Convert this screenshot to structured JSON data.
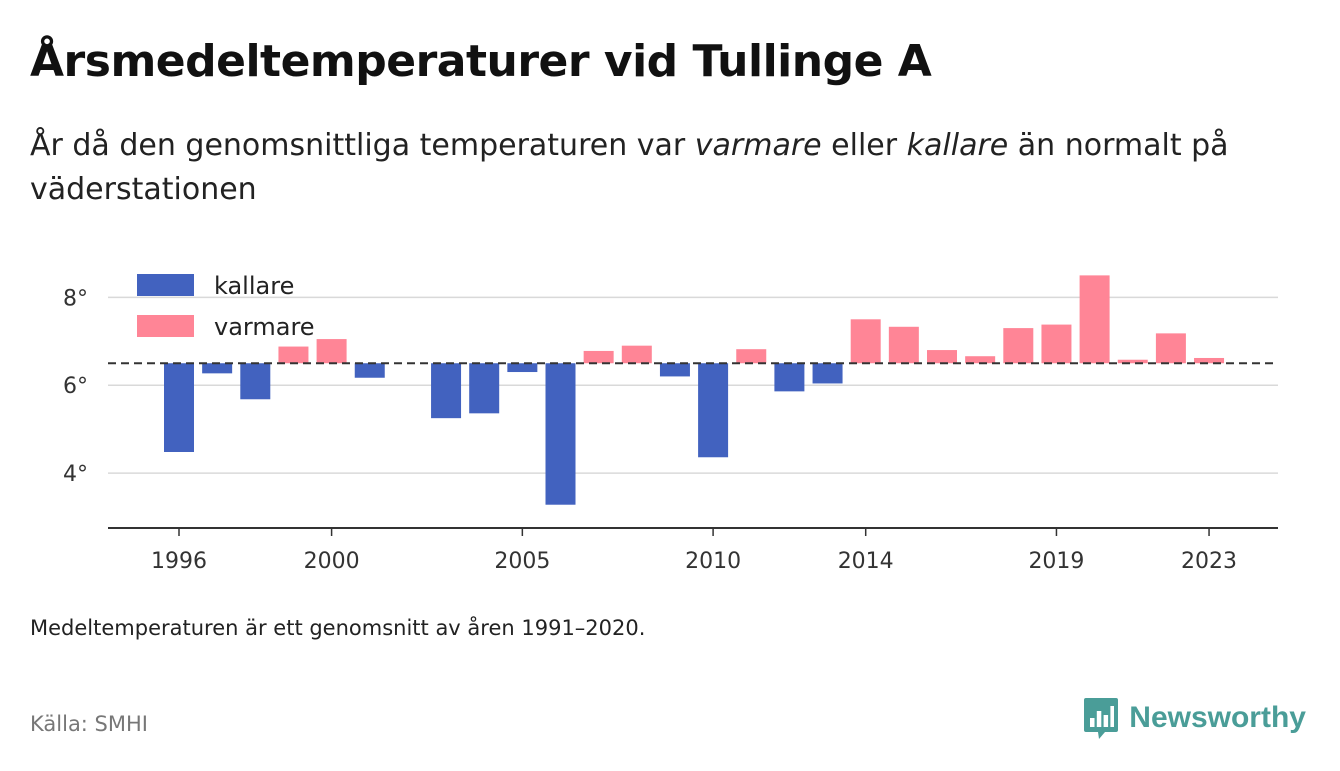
{
  "title": "Årsmedeltemperaturer vid Tullinge A",
  "subtitle": {
    "part1": "År då den genomsnittliga temperaturen var ",
    "warm_word": "varmare",
    "part2": " eller ",
    "cold_word": "kallare",
    "part3": " än normalt på väderstationen"
  },
  "note": "Medeltemperaturen är ett genomsnitt av åren 1991–2020.",
  "source": "Källa: SMHI",
  "brand": {
    "name": "Newsworthy",
    "icon": "bar-chart-speech-bubble-icon"
  },
  "colors": {
    "kallare": "#4262bf",
    "varmare": "#ff8596",
    "normal_line": "#333333",
    "brand": "#4a9d98"
  },
  "chart_data": {
    "type": "bar",
    "baseline": 6.5,
    "ylim": [
      2.75,
      8.85
    ],
    "yticks": [
      4,
      6,
      8
    ],
    "ytick_labels": [
      "4°",
      "6°",
      "8°"
    ],
    "xticks": [
      1996,
      2000,
      2005,
      2010,
      2014,
      2019,
      2023
    ],
    "grid": true,
    "legend": {
      "placement": "top-left",
      "entries": [
        "kallare",
        "varmare"
      ]
    },
    "categories": [
      1996,
      1997,
      1998,
      1999,
      2000,
      2001,
      2002,
      2003,
      2004,
      2005,
      2006,
      2007,
      2008,
      2009,
      2010,
      2011,
      2012,
      2013,
      2014,
      2015,
      2016,
      2017,
      2018,
      2019,
      2020,
      2021,
      2022,
      2023
    ],
    "values": [
      4.48,
      6.27,
      5.68,
      6.88,
      7.05,
      6.17,
      null,
      5.25,
      5.36,
      6.3,
      3.28,
      6.78,
      6.9,
      6.2,
      4.36,
      6.82,
      5.86,
      6.04,
      7.5,
      7.33,
      6.8,
      6.66,
      7.3,
      7.38,
      8.5,
      6.58,
      7.18,
      6.62
    ]
  }
}
